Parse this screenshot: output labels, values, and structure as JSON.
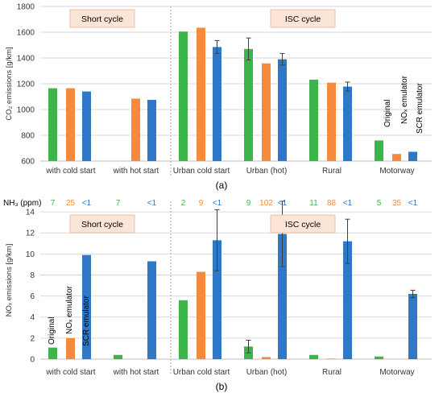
{
  "colors": {
    "original": "#3cb64a",
    "nox_emulator": "#f58a3c",
    "scr_emulator": "#2f78c8",
    "box_bg": "#fbe5d6",
    "box_border": "#e8c0a8"
  },
  "chart_data": [
    {
      "type": "bar",
      "panel_label": "(a)",
      "ylabel": "CO₂ emissions [g/km]",
      "ylim": [
        600,
        1800
      ],
      "yticks": [
        600,
        800,
        1000,
        1200,
        1400,
        1600,
        1800
      ],
      "grid": true,
      "categories": [
        "with cold start",
        "with hot start",
        "Urban cold start",
        "Urban (hot)",
        "Rural",
        "Motorway"
      ],
      "series": [
        {
          "name": "Original",
          "values": [
            1165,
            null,
            1605,
            1470,
            1232,
            760
          ],
          "errors": [
            0,
            0,
            0,
            85,
            0,
            0
          ]
        },
        {
          "name": "NOₓ emulator",
          "values": [
            1165,
            1085,
            1635,
            1358,
            1208,
            655
          ],
          "errors": [
            0,
            0,
            0,
            0,
            0,
            0
          ]
        },
        {
          "name": "SCR emulator",
          "values": [
            1140,
            1075,
            1485,
            1390,
            1178,
            672
          ],
          "errors": [
            0,
            0,
            50,
            45,
            35,
            0
          ]
        }
      ],
      "group_boxes": [
        "Short cycle",
        "ISC cycle"
      ]
    },
    {
      "type": "bar",
      "panel_label": "(b)",
      "ylabel": "NOₓ emissions [g/km]",
      "ylim": [
        0,
        15
      ],
      "yticks": [
        0,
        2,
        4,
        6,
        8,
        10,
        12,
        14
      ],
      "grid": true,
      "categories": [
        "with cold start",
        "with hot start",
        "Urban cold start",
        "Urban (hot)",
        "Rural",
        "Motorway"
      ],
      "series": [
        {
          "name": "Original",
          "values": [
            1.1,
            0.4,
            5.6,
            1.2,
            0.4,
            0.25
          ],
          "errors": [
            0,
            0,
            0,
            0.6,
            0,
            0
          ]
        },
        {
          "name": "NOₓ emulator",
          "values": [
            2.0,
            null,
            8.3,
            0.2,
            0.05,
            null
          ],
          "errors": [
            0,
            0,
            0,
            0,
            0,
            0
          ]
        },
        {
          "name": "SCR emulator",
          "values": [
            9.9,
            9.3,
            11.3,
            11.9,
            11.2,
            6.2
          ],
          "errors": [
            0,
            0,
            2.9,
            3.1,
            2.1,
            0.35
          ]
        }
      ],
      "group_boxes": [
        "Short cycle",
        "ISC cycle"
      ],
      "nh3_label": "NH₃ (ppm)",
      "nh3": [
        [
          "7",
          "25",
          "<1"
        ],
        [
          "7",
          "",
          "<1"
        ],
        [
          "2",
          "9",
          "<1"
        ],
        [
          "9",
          "102",
          "<1"
        ],
        [
          "11",
          "88",
          "<1"
        ],
        [
          "5",
          "35",
          "<1"
        ]
      ]
    }
  ]
}
